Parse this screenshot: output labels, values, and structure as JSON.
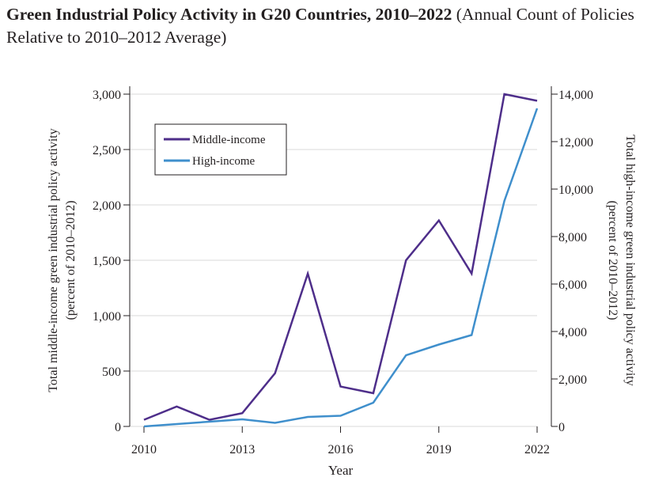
{
  "chart_data": {
    "type": "line",
    "title": "Green Industrial Policy Activity in G20 Countries, 2010–2022",
    "subtitle": "(Annual Count of Policies Relative to 2010–2012 Average)",
    "xlabel": "Year",
    "ylabel_left": [
      "Total middle-income green industrial policy activity",
      "(percent of 2010–2012)"
    ],
    "ylabel_right": [
      "Total high-income green industrial policy activity",
      "(percent of 2010–2012)"
    ],
    "x_ticks": [
      "2010",
      "2013",
      "2016",
      "2019",
      "2022"
    ],
    "y_left_ticks": [
      "0",
      "500",
      "1,000",
      "1,500",
      "2,000",
      "2,500",
      "3,000"
    ],
    "y_right_ticks": [
      "0",
      "2,000",
      "4,000",
      "6,000",
      "8,000",
      "10,000",
      "12,000",
      "14,000"
    ],
    "xlim": [
      2010,
      2022
    ],
    "ylim_left": [
      0,
      3000
    ],
    "ylim_right": [
      0,
      14000
    ],
    "grid": "horizontal",
    "legend": "top-left",
    "x": [
      2010,
      2011,
      2012,
      2013,
      2014,
      2015,
      2016,
      2017,
      2018,
      2019,
      2020,
      2021,
      2022
    ],
    "series": [
      {
        "name": "Middle-income",
        "axis": "left",
        "color": "#4e2e8a",
        "values": [
          60,
          180,
          60,
          120,
          480,
          1380,
          360,
          300,
          1500,
          1860,
          1380,
          3000,
          2940
        ]
      },
      {
        "name": "High-income",
        "axis": "right",
        "color": "#3f8fcc",
        "values": [
          0,
          100,
          200,
          300,
          150,
          400,
          450,
          1000,
          3000,
          3450,
          3850,
          9500,
          13400
        ]
      }
    ]
  }
}
